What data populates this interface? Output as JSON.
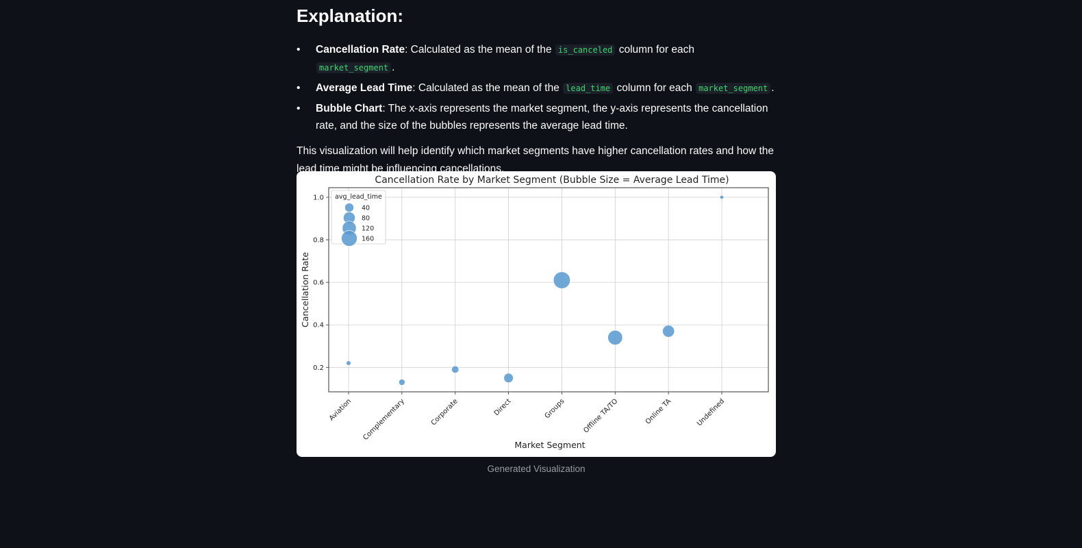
{
  "explanation": {
    "heading": "Explanation:",
    "items": [
      {
        "term": "Cancellation Rate",
        "parts": [
          ": Calculated as the mean of the ",
          "is_canceled",
          " column for each ",
          "market_segment",
          "."
        ]
      },
      {
        "term": "Average Lead Time",
        "parts": [
          ": Calculated as the mean of the ",
          "lead_time",
          " column for each ",
          "market_segment",
          "."
        ]
      },
      {
        "term": "Bubble Chart",
        "text": ": The x-axis represents the market segment, the y-axis represents the cancellation rate, and the size of the bubbles represents the average lead time."
      }
    ],
    "paragraph": "This visualization will help identify which market segments have higher cancellation rates and how the lead time might be influencing cancellations."
  },
  "caption": "Generated Visualization",
  "colors": {
    "background": "#0e1117",
    "bubble": "#5b9bd0",
    "code": "#3dd56d"
  },
  "chart_data": {
    "type": "scatter",
    "title": "Cancellation Rate by Market Segment (Bubble Size = Average Lead Time)",
    "xlabel": "Market Segment",
    "ylabel": "Cancellation Rate",
    "categories": [
      "Aviation",
      "Complementary",
      "Corporate",
      "Direct",
      "Groups",
      "Offline TA/TO",
      "Online TA",
      "Undefined"
    ],
    "cancellation_rate": [
      0.22,
      0.13,
      0.19,
      0.15,
      0.61,
      0.34,
      0.37,
      1.0
    ],
    "avg_lead_time": [
      5,
      14,
      22,
      45,
      186,
      135,
      83,
      2
    ],
    "ylim": [
      0.085,
      1.045
    ],
    "yticks": [
      0.2,
      0.4,
      0.6,
      0.8,
      1.0
    ],
    "ytick_labels": [
      "0.2",
      "0.4",
      "0.6",
      "0.8",
      "1.0"
    ],
    "grid": true,
    "legend": {
      "title": "avg_lead_time",
      "position": "top-left",
      "values": [
        40,
        80,
        120,
        160
      ],
      "labels": [
        "40",
        "80",
        "120",
        "160"
      ]
    }
  }
}
